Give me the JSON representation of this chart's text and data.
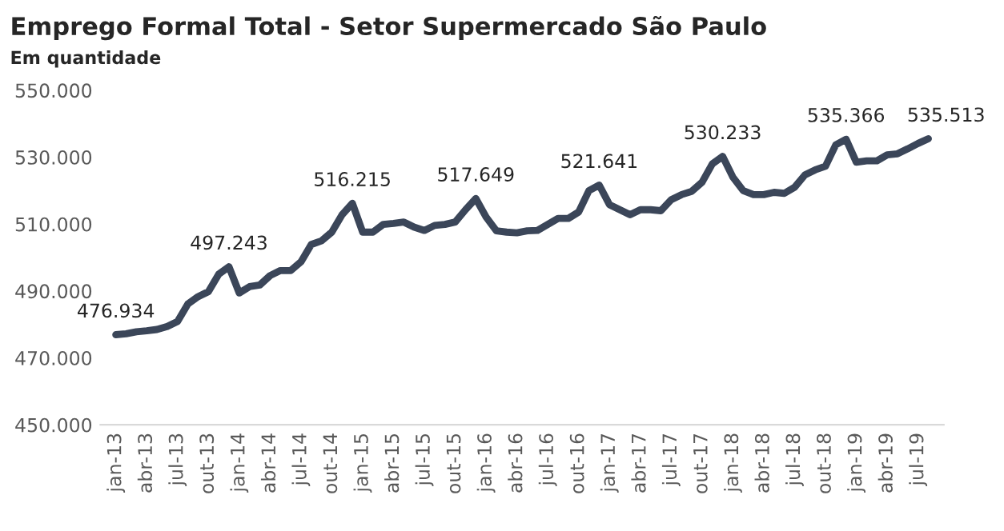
{
  "chart_data": {
    "type": "line",
    "title": "Emprego Formal Total - Setor Supermercado São Paulo",
    "subtitle": "Em quantidade",
    "categories": [
      "jan-13",
      null,
      null,
      "abr-13",
      null,
      null,
      "jul-13",
      null,
      null,
      "out-13",
      null,
      null,
      "jan-14",
      null,
      null,
      "abr-14",
      null,
      null,
      "jul-14",
      null,
      null,
      "out-14",
      null,
      null,
      "jan-15",
      null,
      null,
      "abr-15",
      null,
      null,
      "jul-15",
      null,
      null,
      "out-15",
      null,
      null,
      "jan-16",
      null,
      null,
      "abr-16",
      null,
      null,
      "jul-16",
      null,
      null,
      "out-16",
      null,
      null,
      "jan-17",
      null,
      null,
      "abr-17",
      null,
      null,
      "jul-17",
      null,
      null,
      "out-17",
      null,
      null,
      "jan-18",
      null,
      null,
      "abr-18",
      null,
      null,
      "jul-18",
      null,
      null,
      "out-18",
      null,
      null,
      "jan-19",
      null,
      null,
      "abr-19",
      null,
      null,
      "jul-19",
      null
    ],
    "series": [
      {
        "color": "#3b4659",
        "values": [
          476934,
          477200,
          477800,
          478100,
          478500,
          479400,
          480900,
          486100,
          488300,
          489800,
          495000,
          497243,
          489400,
          491300,
          491800,
          494600,
          496100,
          496100,
          498700,
          503900,
          505000,
          507600,
          512800,
          516215,
          507600,
          507600,
          509900,
          510200,
          510600,
          509100,
          508100,
          509600,
          509900,
          510600,
          514300,
          517649,
          512100,
          508000,
          507600,
          507400,
          508000,
          508100,
          509900,
          511700,
          511700,
          513600,
          520000,
          521641,
          515800,
          514300,
          512800,
          514300,
          514300,
          514000,
          517300,
          518800,
          519800,
          522500,
          528000,
          530233,
          524000,
          520000,
          518800,
          518800,
          519500,
          519200,
          521000,
          524700,
          526200,
          527300,
          533700,
          535366,
          528500,
          528900,
          528900,
          530700,
          531000,
          532500,
          534100,
          535513
        ],
        "value_labels": [
          "476.934",
          null,
          null,
          null,
          null,
          null,
          null,
          null,
          null,
          null,
          null,
          "497.243",
          null,
          null,
          null,
          null,
          null,
          null,
          null,
          null,
          null,
          null,
          null,
          "516.215",
          null,
          null,
          null,
          null,
          null,
          null,
          null,
          null,
          null,
          null,
          null,
          "517.649",
          null,
          null,
          null,
          null,
          null,
          null,
          null,
          null,
          null,
          null,
          null,
          "521.641",
          null,
          null,
          null,
          null,
          null,
          null,
          null,
          null,
          null,
          null,
          null,
          "530.233",
          null,
          null,
          null,
          null,
          null,
          null,
          null,
          null,
          null,
          null,
          null,
          "535.366",
          null,
          null,
          null,
          null,
          null,
          null,
          null,
          "535.513"
        ]
      }
    ],
    "ylim": [
      450000,
      550000
    ],
    "yticks": [
      {
        "value": 450000,
        "label": "450.000"
      },
      {
        "value": 470000,
        "label": "470.000"
      },
      {
        "value": 490000,
        "label": "490.000"
      },
      {
        "value": 510000,
        "label": "510.000"
      },
      {
        "value": 530000,
        "label": "530.000"
      },
      {
        "value": 550000,
        "label": "550.000"
      }
    ],
    "grid": false,
    "legend": false,
    "marker": "none",
    "line_style": "solid"
  }
}
